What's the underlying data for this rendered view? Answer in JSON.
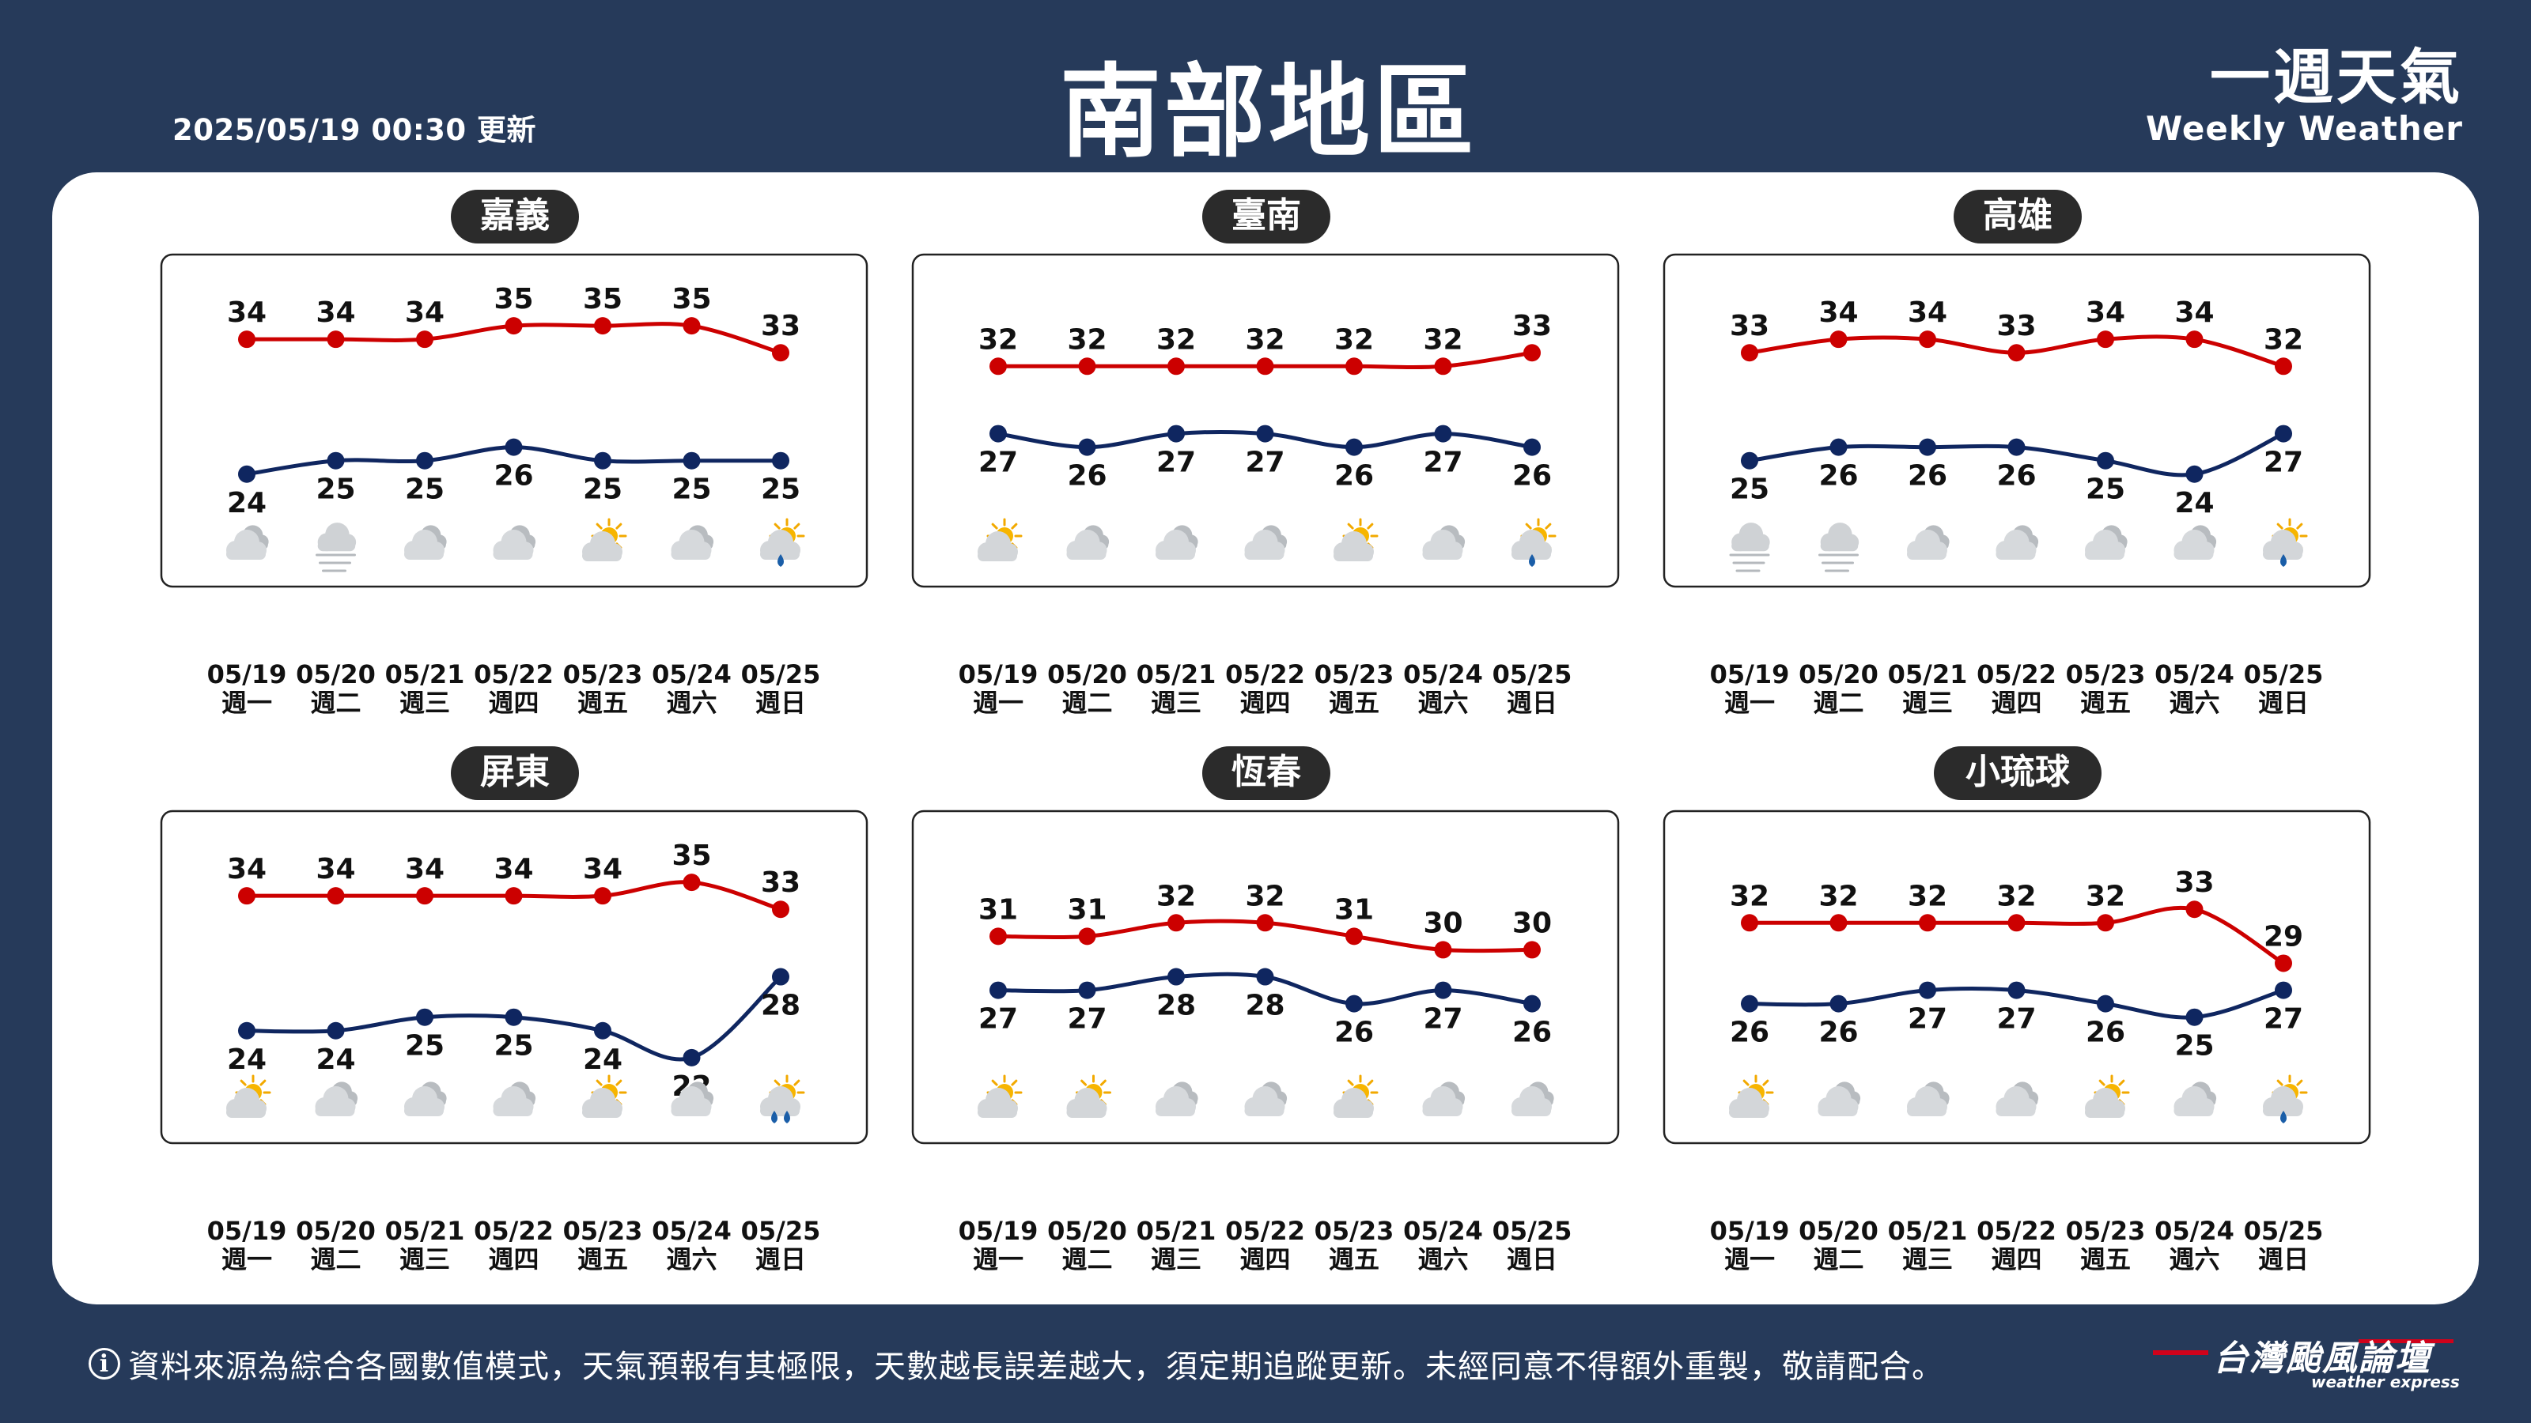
{
  "header": {
    "updated": "2025/05/19 00:30 更新",
    "title": "南部地區",
    "brand_zh": "一週天氣",
    "brand_en": "Weekly Weather"
  },
  "footer": {
    "disclaimer": "資料來源為綜合各國數值模式，天氣預報有其極限，天數越長誤差越大，須定期追蹤更新。未經同意不得額外重製，敬請配合。",
    "logo_zh": "台灣颱風論壇",
    "logo_en": "weather express"
  },
  "colors": {
    "high": "#cc0000",
    "low": "#0f2660",
    "pill": "#2b2b2b"
  },
  "chart_data": [
    {
      "type": "line",
      "title": "嘉義",
      "x": [
        "05/19",
        "05/20",
        "05/21",
        "05/22",
        "05/23",
        "05/24",
        "05/25"
      ],
      "weekdays": [
        "週一",
        "週二",
        "週三",
        "週四",
        "週五",
        "週六",
        "週日"
      ],
      "series": [
        {
          "values": [
            34,
            34,
            34,
            35,
            35,
            35,
            33
          ]
        },
        {
          "values": [
            24,
            25,
            25,
            26,
            25,
            25,
            25
          ]
        }
      ],
      "icons": [
        "cloudy-icon",
        "fog-icon",
        "cloudy-icon",
        "cloudy-icon",
        "partly-sunny-icon",
        "cloudy-icon",
        "sun-rain-icon"
      ]
    },
    {
      "type": "line",
      "title": "臺南",
      "x": [
        "05/19",
        "05/20",
        "05/21",
        "05/22",
        "05/23",
        "05/24",
        "05/25"
      ],
      "weekdays": [
        "週一",
        "週二",
        "週三",
        "週四",
        "週五",
        "週六",
        "週日"
      ],
      "series": [
        {
          "values": [
            32,
            32,
            32,
            32,
            32,
            32,
            33
          ]
        },
        {
          "values": [
            27,
            26,
            27,
            27,
            26,
            27,
            26
          ]
        }
      ],
      "icons": [
        "partly-sunny-icon",
        "cloudy-icon",
        "cloudy-icon",
        "cloudy-icon",
        "partly-sunny-icon",
        "cloudy-icon",
        "sun-rain-icon"
      ]
    },
    {
      "type": "line",
      "title": "高雄",
      "x": [
        "05/19",
        "05/20",
        "05/21",
        "05/22",
        "05/23",
        "05/24",
        "05/25"
      ],
      "weekdays": [
        "週一",
        "週二",
        "週三",
        "週四",
        "週五",
        "週六",
        "週日"
      ],
      "series": [
        {
          "values": [
            33,
            34,
            34,
            33,
            34,
            34,
            32
          ]
        },
        {
          "values": [
            25,
            26,
            26,
            26,
            25,
            24,
            27
          ]
        }
      ],
      "icons": [
        "fog-icon",
        "fog-icon",
        "cloudy-icon",
        "cloudy-icon",
        "cloudy-icon",
        "cloudy-icon",
        "sun-rain-icon"
      ]
    },
    {
      "type": "line",
      "title": "屏東",
      "x": [
        "05/19",
        "05/20",
        "05/21",
        "05/22",
        "05/23",
        "05/24",
        "05/25"
      ],
      "weekdays": [
        "週一",
        "週二",
        "週三",
        "週四",
        "週五",
        "週六",
        "週日"
      ],
      "series": [
        {
          "values": [
            34,
            34,
            34,
            34,
            34,
            35,
            33
          ]
        },
        {
          "values": [
            24,
            24,
            25,
            25,
            24,
            22,
            28
          ]
        }
      ],
      "icons": [
        "partly-sunny-icon",
        "cloudy-icon",
        "cloudy-icon",
        "cloudy-icon",
        "partly-sunny-icon",
        "cloudy-icon",
        "sun-heavy-rain-icon"
      ]
    },
    {
      "type": "line",
      "title": "恆春",
      "x": [
        "05/19",
        "05/20",
        "05/21",
        "05/22",
        "05/23",
        "05/24",
        "05/25"
      ],
      "weekdays": [
        "週一",
        "週二",
        "週三",
        "週四",
        "週五",
        "週六",
        "週日"
      ],
      "series": [
        {
          "values": [
            31,
            31,
            32,
            32,
            31,
            30,
            30
          ]
        },
        {
          "values": [
            27,
            27,
            28,
            28,
            26,
            27,
            26
          ]
        }
      ],
      "icons": [
        "partly-sunny-icon",
        "partly-sunny-icon",
        "cloudy-icon",
        "cloudy-icon",
        "partly-sunny-icon",
        "cloudy-icon",
        "cloudy-icon"
      ]
    },
    {
      "type": "line",
      "title": "小琉球",
      "x": [
        "05/19",
        "05/20",
        "05/21",
        "05/22",
        "05/23",
        "05/24",
        "05/25"
      ],
      "weekdays": [
        "週一",
        "週二",
        "週三",
        "週四",
        "週五",
        "週六",
        "週日"
      ],
      "series": [
        {
          "values": [
            32,
            32,
            32,
            32,
            32,
            33,
            29
          ]
        },
        {
          "values": [
            26,
            26,
            27,
            27,
            26,
            25,
            27
          ]
        }
      ],
      "icons": [
        "partly-sunny-icon",
        "cloudy-icon",
        "cloudy-icon",
        "cloudy-icon",
        "partly-sunny-icon",
        "cloudy-icon",
        "sun-rain-icon"
      ]
    }
  ]
}
